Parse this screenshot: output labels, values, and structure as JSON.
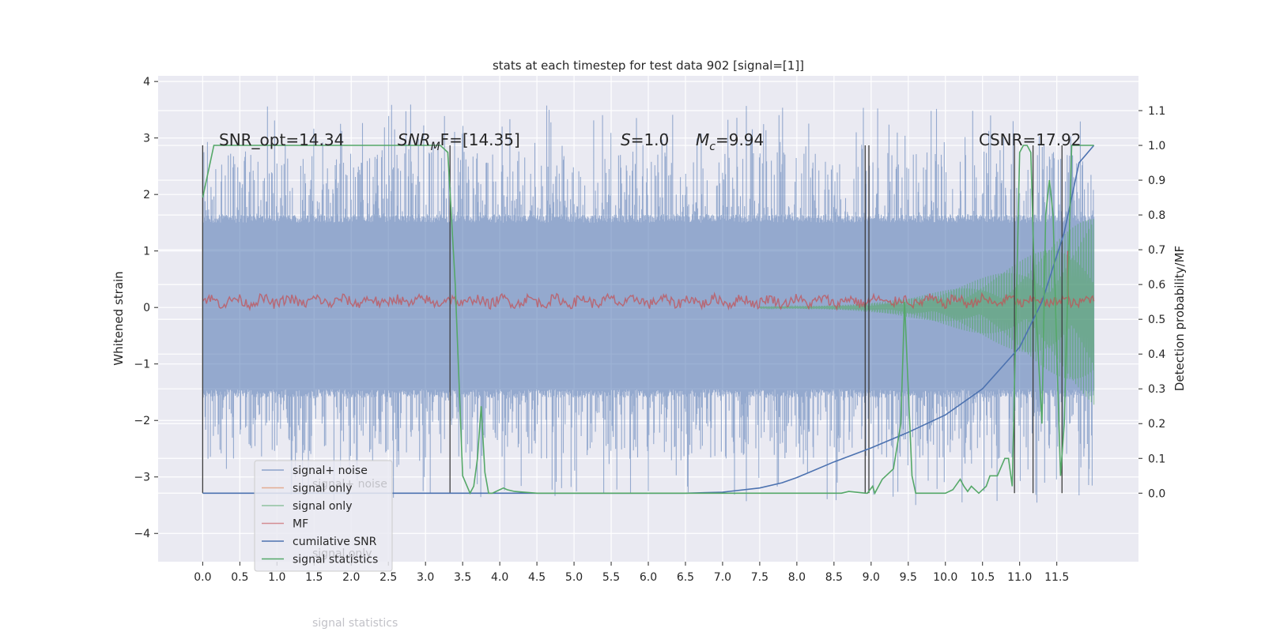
{
  "chart_data": {
    "type": "line",
    "title": "stats at each timestep for test data 902 [signal=[1]]",
    "ylabel": "Whitened strain",
    "y2label": "Detection probability/MF",
    "xlim": [
      -0.6,
      12.6
    ],
    "ylim": [
      -4.5,
      4.1
    ],
    "y2lim": [
      -0.197,
      1.2
    ],
    "x_ticks": [
      "0.0",
      "0.5",
      "1.0",
      "1.5",
      "2.0",
      "2.5",
      "3.0",
      "3.5",
      "4.0",
      "4.5",
      "5.0",
      "5.5",
      "6.0",
      "6.5",
      "7.0",
      "7.5",
      "8.0",
      "8.5",
      "9.0",
      "9.5",
      "10.0",
      "10.5",
      "11.0",
      "11.5"
    ],
    "y_ticks": [
      "4",
      "3",
      "2",
      "1",
      "0",
      "−1",
      "−2",
      "−3",
      "−4"
    ],
    "y2_ticks": [
      "1.1",
      "1.0",
      "0.9",
      "0.8",
      "0.7",
      "0.6",
      "0.5",
      "0.4",
      "0.3",
      "0.2",
      "0.1",
      "0.0"
    ],
    "annotations": {
      "snr_opt": "SNR_opt=14.34",
      "snr_mf_main": "SNR",
      "snr_mf_sub": "M",
      "snr_mf_rest": "F=[14.35]",
      "s_main": "S",
      "s_rest": "=1.0",
      "mc_main": "M",
      "mc_sub": "c",
      "mc_rest": "=9.94",
      "csnr": "CSNR=17.92"
    },
    "legend": {
      "placement": "lower-left",
      "entries": [
        {
          "label": "signal+ noise",
          "color": "#4c72b0",
          "alpha": 0.6
        },
        {
          "label": "signal only",
          "color": "#dd8452",
          "alpha": 0.6
        },
        {
          "label": "signal only",
          "color": "#55a868",
          "alpha": 0.6
        },
        {
          "label": "MF",
          "color": "#c44e52",
          "alpha": 0.6
        },
        {
          "label": "cumilative SNR",
          "color": "#4c72b0",
          "alpha": 1
        },
        {
          "label": "signal statistics",
          "color": "#55a868",
          "alpha": 1
        }
      ],
      "ghost_labels": [
        "signal+ noise",
        "signal only",
        "signal statistics"
      ]
    },
    "series": [
      {
        "name": "signal+ noise",
        "kind": "noise_band",
        "x_range": [
          0,
          12.0
        ],
        "core_range": [
          -1.45,
          1.5
        ],
        "peak_range": [
          -3.5,
          3.6
        ],
        "color": "#4c72b0"
      },
      {
        "name": "signal only",
        "kind": "chirp",
        "x_range": [
          7.5,
          12.0
        ],
        "amplitude_end": 1.7,
        "color": "#55a868"
      },
      {
        "name": "MF",
        "kind": "noise_band",
        "x_range": [
          0,
          12.0
        ],
        "core_range": [
          0.02,
          0.2
        ],
        "color": "#c44e52"
      },
      {
        "name": "cumilative SNR",
        "axis": "right",
        "x": [
          0,
          6.5,
          7.0,
          7.5,
          7.8,
          8.0,
          8.5,
          9.0,
          9.5,
          10.0,
          10.5,
          11.0,
          11.3,
          11.6,
          11.8,
          12.0
        ],
        "y": [
          0.0,
          0.0,
          0.003,
          0.015,
          0.03,
          0.045,
          0.09,
          0.13,
          0.175,
          0.225,
          0.3,
          0.42,
          0.55,
          0.75,
          0.95,
          1.0
        ],
        "color": "#4c72b0"
      },
      {
        "name": "signal statistics",
        "axis": "right",
        "x": [
          0.0,
          0.05,
          0.1,
          0.15,
          0.25,
          3.2,
          3.3,
          3.4,
          3.5,
          3.6,
          3.65,
          3.7,
          3.75,
          3.8,
          3.85,
          3.9,
          4.0,
          4.05,
          4.1,
          4.2,
          4.5,
          5.0,
          6.0,
          7.0,
          8.0,
          8.6,
          8.7,
          8.93,
          8.95,
          9.02,
          9.05,
          9.1,
          9.15,
          9.2,
          9.3,
          9.4,
          9.45,
          9.5,
          9.55,
          9.6,
          9.65,
          9.75,
          9.9,
          10.0,
          10.1,
          10.2,
          10.25,
          10.3,
          10.35,
          10.4,
          10.45,
          10.5,
          10.55,
          10.6,
          10.7,
          10.8,
          10.85,
          10.9,
          11.0,
          11.05,
          11.1,
          11.15,
          11.2,
          11.3,
          11.35,
          11.4,
          11.45,
          11.5,
          11.55,
          11.6,
          11.7,
          12.0
        ],
        "y": [
          0.85,
          0.9,
          0.95,
          1.0,
          1.0,
          1.0,
          0.98,
          0.6,
          0.05,
          0.0,
          0.02,
          0.1,
          0.25,
          0.06,
          0.0,
          0.0,
          0.01,
          0.015,
          0.01,
          0.005,
          0.0,
          0.0,
          0.0,
          0.0,
          0.0,
          0.0,
          0.005,
          0.0,
          0.0,
          0.02,
          0.0,
          0.02,
          0.04,
          0.05,
          0.07,
          0.2,
          0.55,
          0.3,
          0.05,
          0.0,
          0.0,
          0.0,
          0.0,
          0.0,
          0.01,
          0.04,
          0.02,
          0.005,
          0.02,
          0.01,
          0.0,
          0.01,
          0.02,
          0.05,
          0.05,
          0.1,
          0.1,
          0.02,
          0.98,
          1.0,
          1.0,
          0.98,
          0.6,
          0.2,
          0.8,
          0.9,
          0.8,
          0.4,
          0.05,
          0.2,
          1.0,
          1.0
        ],
        "color": "#55a868"
      }
    ],
    "vertical_markers": {
      "x": [
        0.0,
        3.33,
        8.92,
        8.97,
        10.93,
        11.18,
        11.57
      ],
      "range": [
        0.0,
        1.0
      ],
      "color": "#3d3d3d"
    }
  }
}
